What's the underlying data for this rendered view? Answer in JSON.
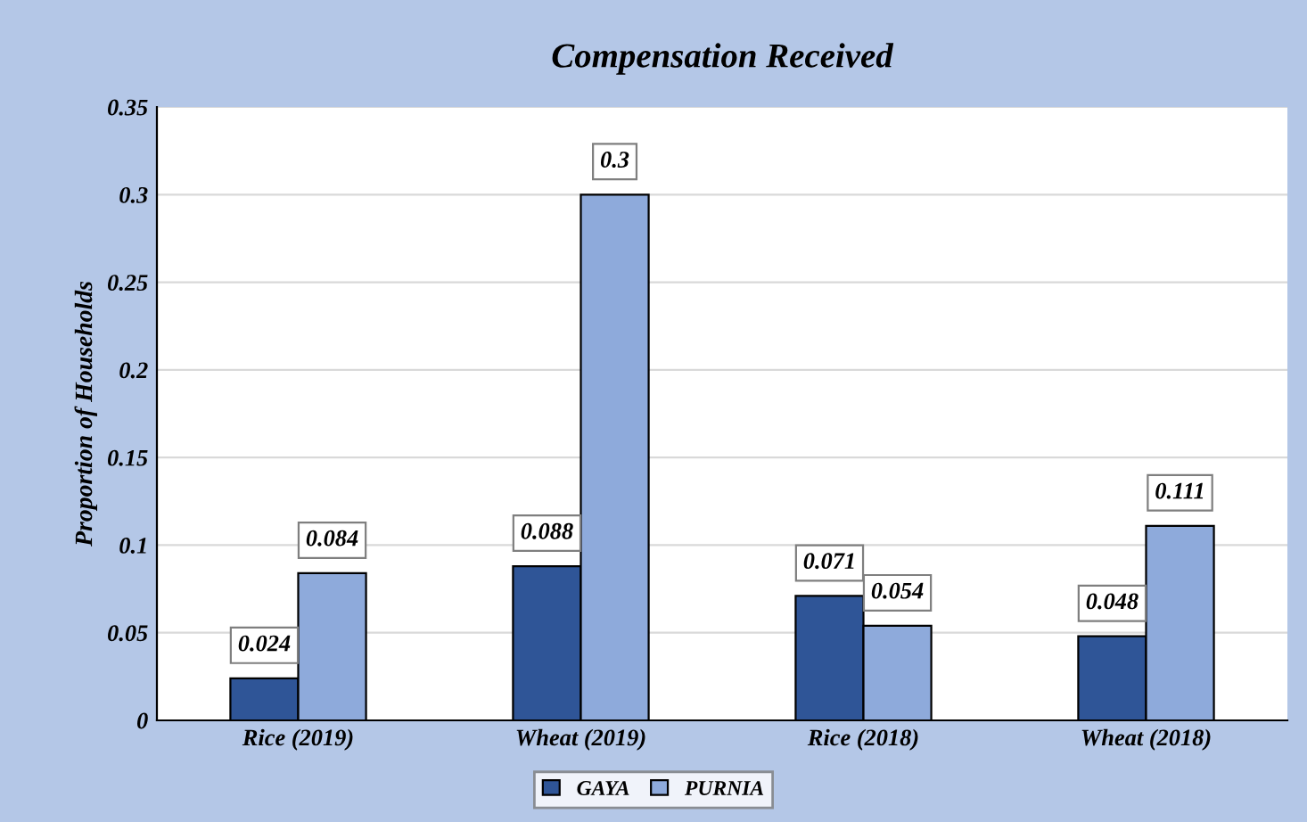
{
  "chart_data": {
    "type": "bar",
    "title": "Compensation Received",
    "ylabel": "Proportion of Households",
    "categories": [
      "Rice (2019)",
      "Wheat (2019)",
      "Rice (2018)",
      "Wheat (2018)"
    ],
    "series": [
      {
        "name": "GAYA",
        "color": "#2f5597",
        "values": [
          0.024,
          0.088,
          0.071,
          0.048
        ]
      },
      {
        "name": "PURNIA",
        "color": "#8eaadb",
        "values": [
          0.084,
          0.3,
          0.054,
          0.111
        ]
      }
    ],
    "ylim": [
      0,
      0.35
    ],
    "yticks": [
      0,
      0.05,
      0.1,
      0.15,
      0.2,
      0.25,
      0.3,
      0.35
    ],
    "grid": "y",
    "legend": "bottom",
    "data_labels": true
  }
}
